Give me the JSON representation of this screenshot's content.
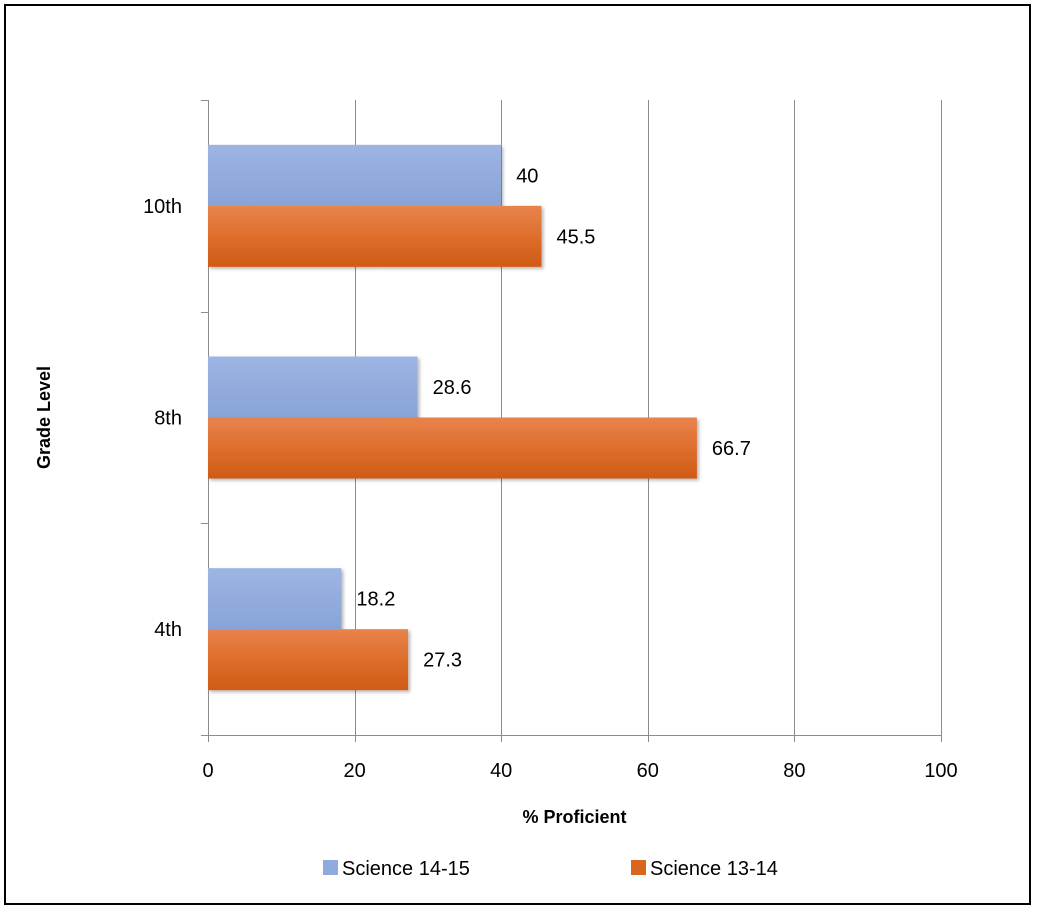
{
  "chart_data": {
    "type": "bar",
    "orientation": "horizontal",
    "categories": [
      "10th",
      "8th",
      "4th"
    ],
    "series": [
      {
        "name": "Science 14-15",
        "values": [
          40,
          28.6,
          18.2
        ],
        "color": "#8FAADC"
      },
      {
        "name": "Science 13-14",
        "values": [
          45.5,
          66.7,
          27.3
        ],
        "color": "#D9651F"
      }
    ],
    "xlabel": "% Proficient",
    "ylabel": "Grade Level",
    "xlim": [
      0,
      100
    ],
    "xticks": [
      0,
      20,
      40,
      60,
      80,
      100
    ],
    "grid": true,
    "legend": "bottom",
    "data_labels": true
  }
}
